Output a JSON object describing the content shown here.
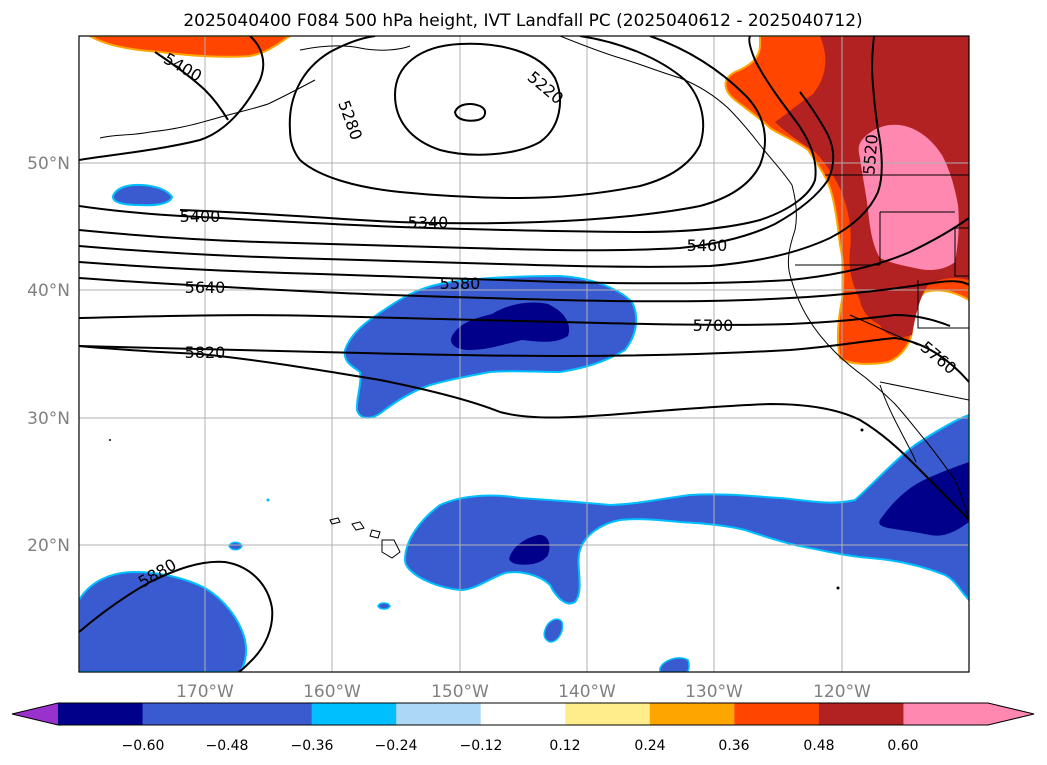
{
  "title": "2025040400 F084 500 hPa height, IVT Landfall PC (2025040612 - 2025040712)",
  "map": {
    "lon_labels": [
      "170°W",
      "160°W",
      "150°W",
      "140°W",
      "130°W",
      "120°W"
    ],
    "lat_labels": [
      "50°N",
      "40°N",
      "30°N",
      "20°N"
    ],
    "extent": {
      "lon_min": -180,
      "lon_max": -110,
      "lat_min": 10,
      "lat_max": 60
    },
    "gridlines": true
  },
  "contours": {
    "variable": "500 hPa height",
    "labels": [
      "5220",
      "5280",
      "5400",
      "5400",
      "5340",
      "5460",
      "5580",
      "5640",
      "5700",
      "5820",
      "5760",
      "5520",
      "5880"
    ]
  },
  "shading": {
    "variable": "IVT Landfall PC",
    "colors": {
      "lt_neg060": "#9932cc",
      "neg060_neg048": "#00008b",
      "neg048_neg024": "#3a5bcf",
      "neg036_neg024": "#00bfff",
      "neg024_neg012": "#add8f5",
      "neutral": "#ffffff",
      "pos012_024": "#ffec8b",
      "pos024_036": "#ffa500",
      "pos036_048": "#ff4500",
      "pos048_060": "#b22222",
      "gt060": "#ff88b0"
    }
  },
  "colorbar": {
    "tick_labels": [
      "−0.60",
      "−0.48",
      "−0.36",
      "−0.24",
      "−0.12",
      "0.12",
      "0.24",
      "0.36",
      "0.48",
      "0.60"
    ],
    "segment_colors": [
      "#00008b",
      "#3a5bcf",
      "#3a5bcf",
      "#00bfff",
      "#add8f5",
      "#ffffff",
      "#ffec8b",
      "#ffa500",
      "#ff4500",
      "#b22222",
      "#ff88b0"
    ],
    "extend_min_color": "#9932cc",
    "extend_max_color": "#ff88b0"
  }
}
